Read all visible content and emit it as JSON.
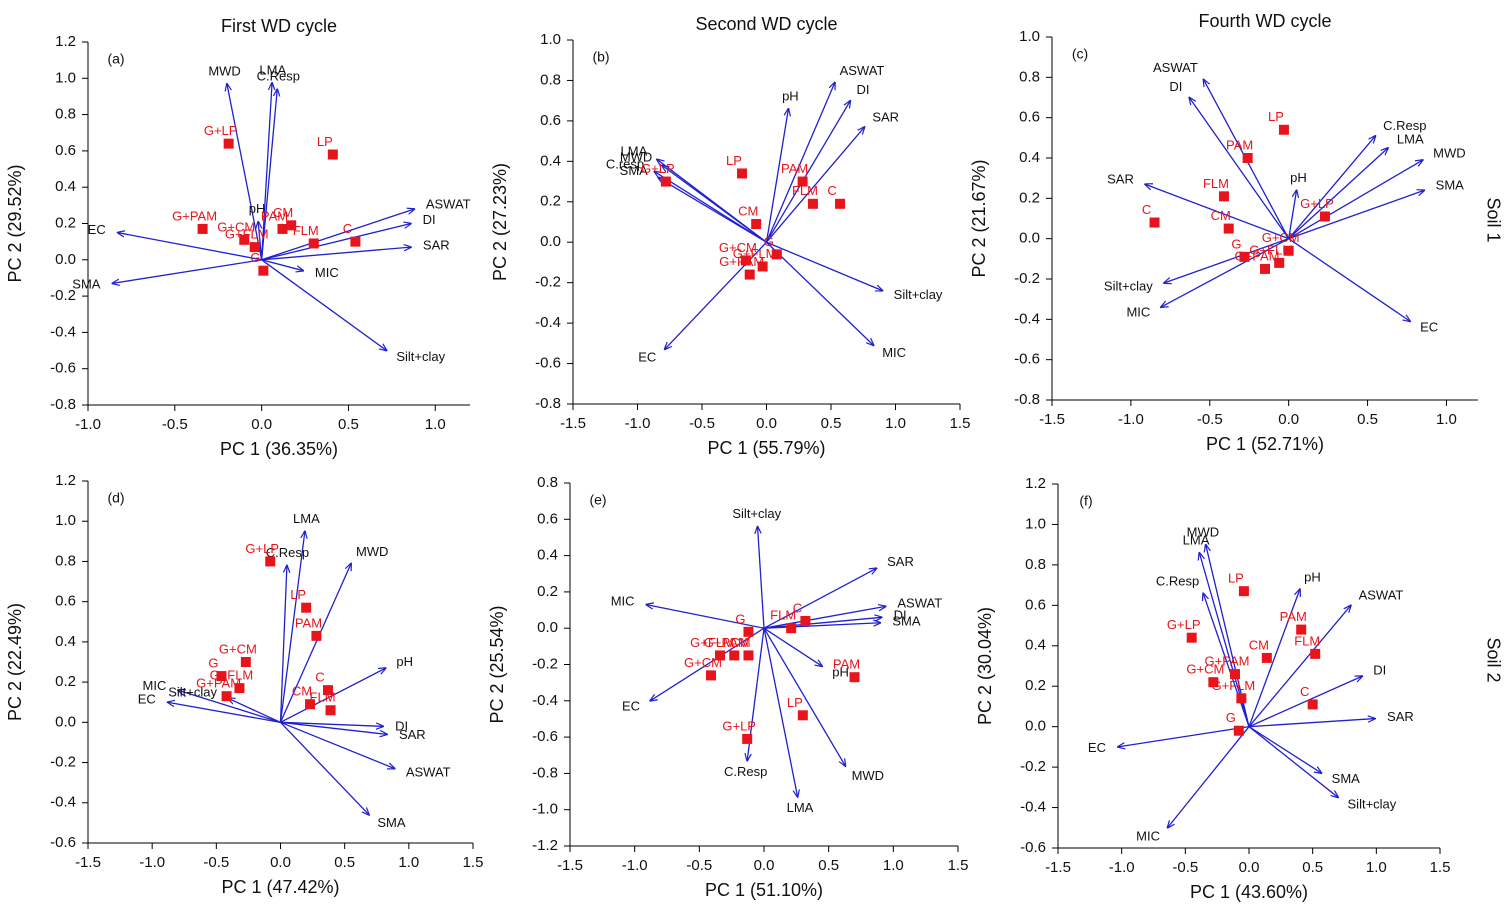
{
  "row_labels": [
    "Soil 1",
    "Soil 2"
  ],
  "chart_data": [
    {
      "type": "biplot",
      "title": "First WD cycle",
      "panel": "(a)",
      "xlabel": "PC 1 (36.35%)",
      "ylabel": "PC 2 (29.52%)",
      "xlim": [
        -1.0,
        1.2
      ],
      "ylim": [
        -0.8,
        1.2
      ],
      "xticks": [
        {
          "value": -1,
          "label": "-1.0"
        },
        -0.5,
        {
          "value": 0,
          "label": "0.0"
        },
        0.5,
        {
          "value": 1,
          "label": "1.0"
        }
      ],
      "yticks": [
        -0.8,
        -0.6,
        -0.4,
        -0.2,
        {
          "value": 0,
          "label": "0.0"
        },
        0.2,
        0.4,
        0.6,
        0.8,
        {
          "value": 1,
          "label": "1.0"
        },
        1.2
      ],
      "loadings": {
        "color": "#2020d0",
        "labels": [
          "MWD",
          "LMA",
          "C.Resp",
          "pH",
          "EC",
          "SMA",
          "ASWAT",
          "DI",
          "SAR",
          "MIC",
          "Silt+clay"
        ],
        "x": [
          -0.2,
          0.06,
          0.09,
          -0.02,
          -0.83,
          -0.86,
          0.88,
          0.86,
          0.86,
          0.24,
          0.72
        ],
        "y": [
          0.97,
          0.975,
          0.94,
          0.21,
          0.15,
          -0.13,
          0.28,
          0.2,
          0.07,
          -0.06,
          -0.5
        ]
      },
      "scores": {
        "color": "#e8141b",
        "labels": [
          "G+LP",
          "LP",
          "G+PAM",
          "G+CM",
          "G+FLM",
          "G",
          "CM",
          "PAM",
          "FLM",
          "C"
        ],
        "x": [
          -0.19,
          0.41,
          -0.34,
          -0.1,
          -0.04,
          0.01,
          0.17,
          0.12,
          0.3,
          0.54
        ],
        "y": [
          0.64,
          0.58,
          0.17,
          0.11,
          0.07,
          -0.06,
          0.19,
          0.17,
          0.09,
          0.1
        ]
      }
    },
    {
      "type": "biplot",
      "title": "Second WD cycle",
      "panel": "(b)",
      "xlabel": "PC 1 (55.79%)",
      "ylabel": "PC 2 (27.23%)",
      "xlim": [
        -1.5,
        1.5
      ],
      "ylim": [
        -0.8,
        1.0
      ],
      "xticks": [
        -1.5,
        {
          "value": -1,
          "label": "-1.0"
        },
        -0.5,
        {
          "value": 0,
          "label": "0.0"
        },
        0.5,
        {
          "value": 1,
          "label": "1.0"
        },
        1.5
      ],
      "yticks": [
        -0.8,
        -0.6,
        -0.4,
        -0.2,
        {
          "value": 0,
          "label": "0.0"
        },
        0.2,
        0.4,
        0.6,
        0.8,
        {
          "value": 1,
          "label": "1.0"
        }
      ],
      "loadings": {
        "color": "#2020d0",
        "labels": [
          "ASWAT",
          "pH",
          "DI",
          "SAR",
          "LMA",
          "C.resp",
          "MWD",
          "SMA",
          "EC",
          "Silt+clay",
          "MIC"
        ],
        "x": [
          0.53,
          0.17,
          0.65,
          0.76,
          -0.85,
          -0.87,
          -0.81,
          -0.84,
          -0.79,
          0.9,
          0.83
        ],
        "y": [
          0.79,
          0.66,
          0.7,
          0.57,
          0.41,
          0.35,
          0.38,
          0.32,
          -0.53,
          -0.24,
          -0.51
        ]
      },
      "scores": {
        "color": "#e8141b",
        "labels": [
          "LP",
          "PAM",
          "G+LP",
          "CM",
          "FLM",
          "C",
          "G+CM",
          "G",
          "G+FLM",
          "G+PAM"
        ],
        "x": [
          -0.19,
          0.28,
          -0.78,
          -0.08,
          0.36,
          0.57,
          -0.16,
          0.08,
          -0.03,
          -0.13
        ],
        "y": [
          0.34,
          0.3,
          0.3,
          0.09,
          0.19,
          0.19,
          -0.09,
          -0.06,
          -0.12,
          -0.16
        ]
      }
    },
    {
      "type": "biplot",
      "title": "Fourth WD cycle",
      "panel": "(c)",
      "xlabel": "PC 1 (52.71%)",
      "ylabel": "PC 2 (21.67%)",
      "xlim": [
        -1.5,
        1.2
      ],
      "ylim": [
        -0.8,
        1.0
      ],
      "xticks": [
        -1.5,
        {
          "value": -1,
          "label": "-1.0"
        },
        -0.5,
        {
          "value": 0,
          "label": "0.0"
        },
        0.5,
        {
          "value": 1,
          "label": "1.0"
        }
      ],
      "yticks": [
        -0.8,
        -0.6,
        -0.4,
        -0.2,
        {
          "value": 0,
          "label": "0.0"
        },
        0.2,
        0.4,
        0.6,
        0.8,
        {
          "value": 1,
          "label": "1.0"
        }
      ],
      "loadings": {
        "color": "#2020d0",
        "labels": [
          "ASWAT",
          "DI",
          "SAR",
          "C.Resp",
          "LMA",
          "MWD",
          "SMA",
          "pH",
          "Silt+clay",
          "MIC",
          "EC"
        ],
        "x": [
          -0.54,
          -0.63,
          -0.91,
          0.55,
          0.63,
          0.85,
          0.86,
          0.05,
          -0.79,
          -0.81,
          0.77
        ],
        "y": [
          0.79,
          0.7,
          0.27,
          0.51,
          0.45,
          0.39,
          0.24,
          0.24,
          -0.22,
          -0.34,
          -0.41
        ]
      },
      "scores": {
        "color": "#e8141b",
        "labels": [
          "LP",
          "PAM",
          "FLM",
          "C",
          "CM",
          "G+LP",
          "G+CM",
          "G",
          "G+FLM",
          "G+PAM"
        ],
        "x": [
          -0.03,
          -0.26,
          -0.41,
          -0.85,
          -0.38,
          0.23,
          0.0,
          -0.28,
          -0.06,
          -0.15
        ],
        "y": [
          0.54,
          0.4,
          0.21,
          0.08,
          0.05,
          0.11,
          -0.06,
          -0.09,
          -0.12,
          -0.15
        ]
      }
    },
    {
      "type": "biplot",
      "panel": "(d)",
      "xlabel": "PC 1 (47.42%)",
      "ylabel": "PC 2 (22.49%)",
      "xlim": [
        -1.5,
        1.5
      ],
      "ylim": [
        -0.6,
        1.2
      ],
      "xticks": [
        -1.5,
        {
          "value": -1,
          "label": "-1.0"
        },
        -0.5,
        {
          "value": 0,
          "label": "0.0"
        },
        0.5,
        {
          "value": 1,
          "label": "1.0"
        },
        1.5
      ],
      "yticks": [
        -0.6,
        -0.4,
        -0.2,
        {
          "value": 0,
          "label": "0.0"
        },
        0.2,
        0.4,
        0.6,
        0.8,
        {
          "value": 1,
          "label": "1.0"
        },
        1.2
      ],
      "loadings": {
        "color": "#2020d0",
        "labels": [
          "LMA",
          "C.Resp",
          "MWD",
          "pH",
          "DI",
          "SAR",
          "ASWAT",
          "SMA",
          "MIC",
          "EC",
          "Silt+clay"
        ],
        "x": [
          0.19,
          0.05,
          0.55,
          0.82,
          0.8,
          0.83,
          0.89,
          0.69,
          -0.8,
          -0.88,
          -0.41
        ],
        "y": [
          0.95,
          0.78,
          0.79,
          0.27,
          -0.02,
          -0.06,
          -0.23,
          -0.46,
          0.16,
          0.1,
          0.12
        ]
      },
      "scores": {
        "color": "#e8141b",
        "labels": [
          "G+LP",
          "LP",
          "PAM",
          "G+CM",
          "G",
          "G+FLM",
          "G+PAM",
          "C",
          "CM",
          "FLM"
        ],
        "x": [
          -0.08,
          0.2,
          0.28,
          -0.27,
          -0.46,
          -0.32,
          -0.42,
          0.37,
          0.23,
          0.39
        ],
        "y": [
          0.8,
          0.57,
          0.43,
          0.3,
          0.23,
          0.17,
          0.13,
          0.16,
          0.09,
          0.06
        ]
      }
    },
    {
      "type": "biplot",
      "panel": "(e)",
      "xlabel": "PC 1 (51.10%)",
      "ylabel": "PC 2 (25.54%)",
      "xlim": [
        -1.5,
        1.5
      ],
      "ylim": [
        -1.2,
        0.8
      ],
      "xticks": [
        -1.5,
        {
          "value": -1,
          "label": "-1.0"
        },
        -0.5,
        {
          "value": 0,
          "label": "0.0"
        },
        0.5,
        {
          "value": 1,
          "label": "1.0"
        },
        1.5
      ],
      "yticks": [
        -1.2,
        {
          "value": -1,
          "label": "-1.0"
        },
        -0.8,
        -0.6,
        -0.4,
        -0.2,
        {
          "value": 0,
          "label": "0.0"
        },
        0.2,
        0.4,
        0.6,
        0.8
      ],
      "loadings": {
        "color": "#2020d0",
        "labels": [
          "Silt+clay",
          "SAR",
          "ASWAT",
          "DI",
          "SMA",
          "MIC",
          "EC",
          "pH",
          "MWD",
          "LMA",
          "C.Resp"
        ],
        "x": [
          -0.05,
          0.87,
          0.94,
          0.91,
          0.9,
          -0.91,
          -0.88,
          0.45,
          0.63,
          0.26,
          -0.13
        ],
        "y": [
          0.56,
          0.33,
          0.12,
          0.06,
          0.03,
          0.13,
          -0.4,
          -0.21,
          -0.76,
          -0.93,
          -0.73
        ]
      },
      "scores": {
        "color": "#e8141b",
        "labels": [
          "G",
          "C",
          "FLM",
          "G+FLM",
          "G+PAM",
          "CM",
          "G+CM",
          "PAM",
          "LP",
          "G+LP"
        ],
        "x": [
          -0.12,
          0.32,
          0.21,
          -0.34,
          -0.23,
          -0.12,
          -0.41,
          0.7,
          0.3,
          -0.13
        ],
        "y": [
          -0.02,
          0.04,
          0.0,
          -0.15,
          -0.15,
          -0.15,
          -0.26,
          -0.27,
          -0.48,
          -0.61
        ]
      }
    },
    {
      "type": "biplot",
      "panel": "(f)",
      "xlabel": "PC 1 (43.60%)",
      "ylabel": "PC 2 (30.04%)",
      "xlim": [
        -1.5,
        1.5
      ],
      "ylim": [
        -0.6,
        1.2
      ],
      "xticks": [
        -1.5,
        {
          "value": -1,
          "label": "-1.0"
        },
        -0.5,
        {
          "value": 0,
          "label": "0.0"
        },
        0.5,
        {
          "value": 1,
          "label": "1.0"
        },
        1.5
      ],
      "yticks": [
        -0.6,
        -0.4,
        -0.2,
        {
          "value": 0,
          "label": "0.0"
        },
        0.2,
        0.4,
        0.6,
        0.8,
        {
          "value": 1,
          "label": "1.0"
        },
        1.2
      ],
      "loadings": {
        "color": "#2020d0",
        "labels": [
          "MWD",
          "LMA",
          "C.Resp",
          "pH",
          "ASWAT",
          "DI",
          "SAR",
          "SMA",
          "Silt+clay",
          "EC",
          "MIC"
        ],
        "x": [
          -0.34,
          -0.39,
          -0.36,
          0.4,
          0.8,
          0.89,
          0.99,
          0.57,
          0.7,
          -1.03,
          -0.64
        ],
        "y": [
          0.9,
          0.86,
          0.66,
          0.68,
          0.6,
          0.25,
          0.04,
          -0.23,
          -0.35,
          -0.1,
          -0.5
        ]
      },
      "scores": {
        "color": "#e8141b",
        "labels": [
          "LP",
          "PAM",
          "G+LP",
          "CM",
          "FLM",
          "G+PAM",
          "G+CM",
          "C",
          "G+FLM",
          "G"
        ],
        "x": [
          -0.04,
          0.41,
          -0.45,
          0.14,
          0.52,
          -0.11,
          -0.28,
          0.5,
          -0.06,
          -0.08
        ],
        "y": [
          0.67,
          0.48,
          0.44,
          0.34,
          0.36,
          0.26,
          0.22,
          0.11,
          0.14,
          -0.02
        ]
      }
    }
  ]
}
